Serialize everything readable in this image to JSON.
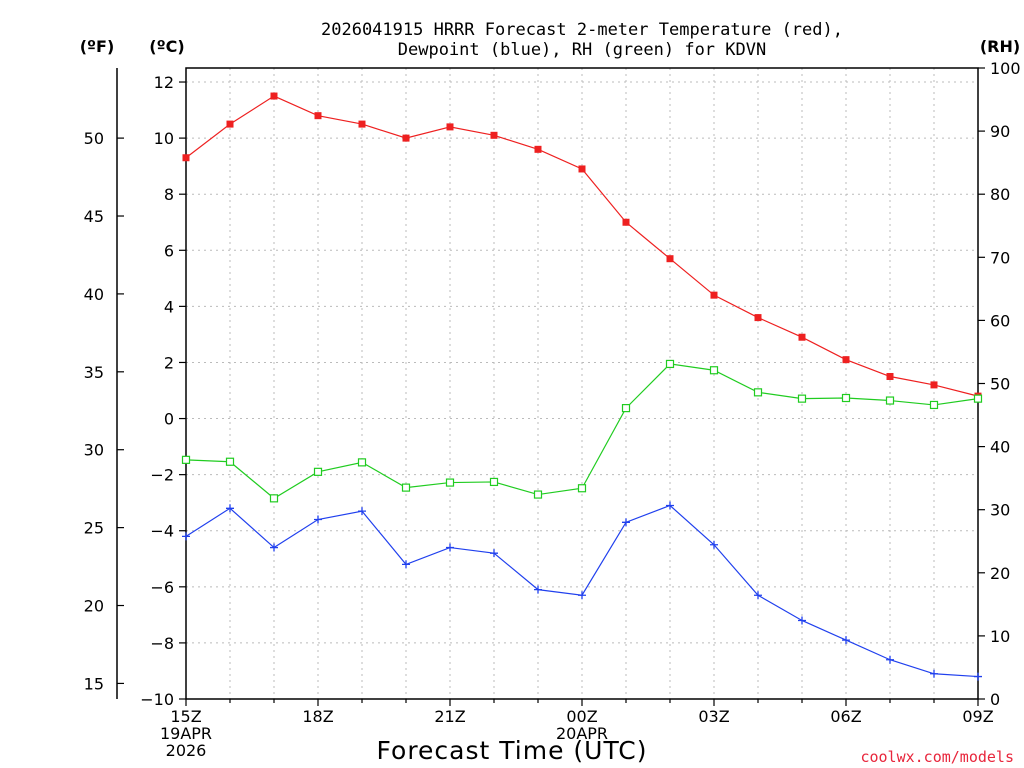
{
  "chart_data": {
    "type": "line",
    "title_line1": "2026041915 HRRR Forecast 2-meter Temperature (red),",
    "title_line2": "Dewpoint (blue), RH (green) for KDVN",
    "unit_f": "(ºF)",
    "unit_c": "(ºC)",
    "unit_rh": "(RH)",
    "xlabel": "Forecast Time (UTC)",
    "credit": "coolwx.com/models",
    "x_ticks": [
      {
        "hour": 0,
        "lines": [
          "15Z",
          "19APR",
          "2026"
        ]
      },
      {
        "hour": 3,
        "lines": [
          "18Z"
        ]
      },
      {
        "hour": 6,
        "lines": [
          "21Z"
        ]
      },
      {
        "hour": 9,
        "lines": [
          "00Z",
          "20APR"
        ]
      },
      {
        "hour": 12,
        "lines": [
          "03Z"
        ]
      },
      {
        "hour": 15,
        "lines": [
          "06Z"
        ]
      },
      {
        "hour": 18,
        "lines": [
          "09Z"
        ]
      }
    ],
    "x_range": [
      0,
      18
    ],
    "c_range": [
      -10,
      12.5
    ],
    "c_ticks": [
      12,
      10,
      8,
      6,
      4,
      2,
      0,
      -2,
      -4,
      -6,
      -8,
      -10
    ],
    "c_tick_labels": [
      "12",
      "10",
      "8",
      "6",
      "4",
      "2",
      "0",
      "−2",
      "−4",
      "−6",
      "−8",
      "−10"
    ],
    "f_ticks": [
      50,
      45,
      40,
      35,
      30,
      25,
      20,
      15
    ],
    "rh_range": [
      0,
      100
    ],
    "rh_ticks": [
      100,
      90,
      80,
      70,
      60,
      50,
      40,
      30,
      20,
      10,
      0
    ],
    "series": [
      {
        "name": "Temperature",
        "unit": "C",
        "color": "#ee2020",
        "marker": "filled-square",
        "hours": [
          0,
          1,
          2,
          3,
          4,
          5,
          6,
          7,
          8,
          9,
          10,
          11,
          12,
          13,
          14,
          15,
          16,
          17,
          18
        ],
        "values": [
          9.3,
          10.5,
          11.5,
          10.8,
          10.5,
          10.0,
          10.4,
          10.1,
          9.6,
          8.9,
          7.0,
          5.7,
          4.4,
          3.6,
          2.9,
          2.1,
          1.5,
          1.2,
          0.8
        ]
      },
      {
        "name": "Dewpoint",
        "unit": "C",
        "color": "#2040ee",
        "marker": "plus",
        "hours": [
          0,
          1,
          2,
          3,
          4,
          5,
          6,
          7,
          8,
          9,
          10,
          11,
          12,
          13,
          14,
          15,
          16,
          17,
          18
        ],
        "values": [
          -4.2,
          -3.2,
          -4.6,
          -3.6,
          -3.3,
          -5.2,
          -4.6,
          -4.8,
          -6.1,
          -6.3,
          -3.7,
          -3.1,
          -4.5,
          -6.3,
          -7.2,
          -7.9,
          -8.6,
          -9.1,
          -9.2
        ]
      },
      {
        "name": "RH",
        "unit": "%",
        "color": "#20cc20",
        "marker": "open-square",
        "hours": [
          0,
          1,
          2,
          3,
          4,
          5,
          6,
          7,
          8,
          9,
          10,
          11,
          12,
          13,
          14,
          15,
          16,
          17,
          18
        ],
        "values": [
          37.9,
          37.6,
          31.8,
          36.0,
          37.5,
          33.5,
          34.3,
          34.4,
          32.4,
          33.4,
          46.1,
          53.1,
          52.1,
          48.6,
          47.6,
          47.7,
          47.3,
          46.6,
          47.6
        ]
      }
    ],
    "grid": true
  }
}
